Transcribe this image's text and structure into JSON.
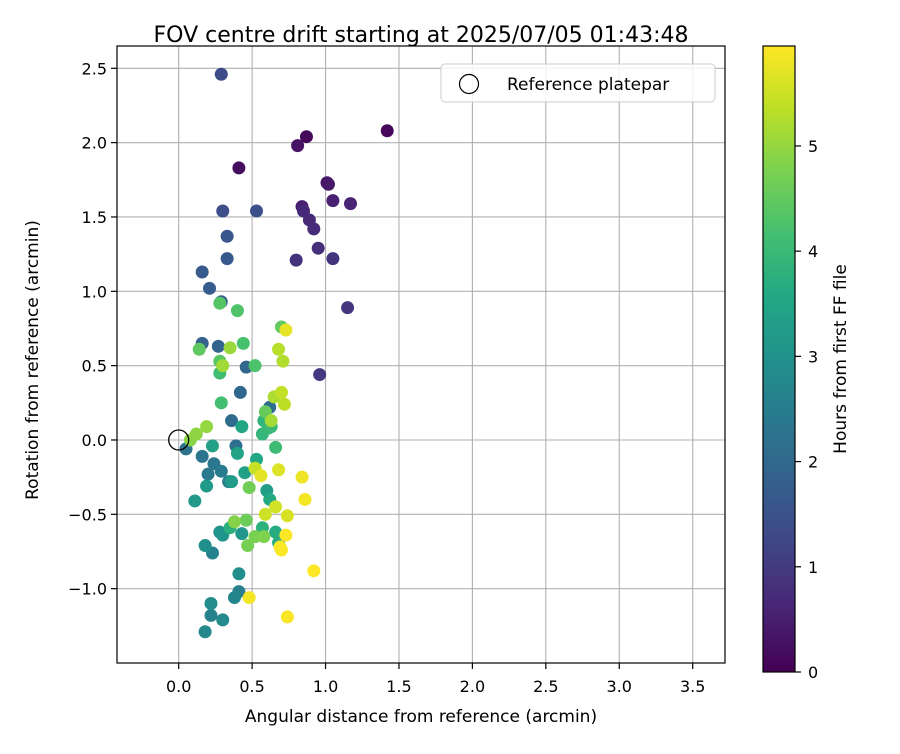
{
  "chart_data": {
    "type": "scatter",
    "title": "FOV centre drift starting at 2025/07/05 01:43:48",
    "xlabel": "Angular distance from reference (arcmin)",
    "ylabel": "Rotation from reference (arcmin)",
    "xlim": [
      -0.42,
      3.72
    ],
    "ylim": [
      -1.5,
      2.65
    ],
    "xticks": [
      0.0,
      0.5,
      1.0,
      1.5,
      2.0,
      2.5,
      3.0,
      3.5
    ],
    "xtick_labels": [
      "0.0",
      "0.5",
      "1.0",
      "1.5",
      "2.0",
      "2.5",
      "3.0",
      "3.5"
    ],
    "yticks": [
      -1.0,
      -0.5,
      0.0,
      0.5,
      1.0,
      1.5,
      2.0,
      2.5
    ],
    "ytick_labels": [
      "−1.0",
      "−0.5",
      "0.0",
      "0.5",
      "1.0",
      "1.5",
      "2.0",
      "2.5"
    ],
    "grid": true,
    "legend": {
      "position": "top-right",
      "label": "Reference platepar",
      "marker": "open-circle"
    },
    "reference_point": {
      "x": 0.0,
      "y": 0.0
    },
    "colorbar": {
      "label": "Hours from first FF file",
      "colormap": "viridis",
      "range": [
        0,
        5.95
      ],
      "ticks": [
        0,
        1,
        2,
        3,
        4,
        5
      ],
      "tick_labels": [
        "0",
        "1",
        "2",
        "3",
        "4",
        "5"
      ]
    },
    "series": [
      {
        "color_by": "hours",
        "points": [
          [
            1.42,
            2.08,
            0.1
          ],
          [
            0.87,
            2.04,
            0.15
          ],
          [
            0.41,
            1.83,
            0.2
          ],
          [
            0.81,
            1.98,
            0.3
          ],
          [
            1.01,
            1.73,
            0.35
          ],
          [
            1.02,
            1.72,
            0.4
          ],
          [
            0.84,
            1.57,
            0.5
          ],
          [
            1.05,
            1.61,
            0.55
          ],
          [
            1.17,
            1.59,
            0.6
          ],
          [
            0.85,
            1.54,
            0.65
          ],
          [
            0.89,
            1.48,
            0.7
          ],
          [
            0.92,
            1.42,
            0.75
          ],
          [
            0.95,
            1.29,
            0.8
          ],
          [
            0.8,
            1.21,
            0.85
          ],
          [
            1.05,
            1.22,
            0.9
          ],
          [
            1.15,
            0.89,
            0.95
          ],
          [
            0.96,
            0.44,
            1.0
          ],
          [
            0.29,
            2.46,
            1.35
          ],
          [
            0.3,
            1.54,
            1.4
          ],
          [
            0.53,
            1.54,
            1.45
          ],
          [
            0.33,
            1.37,
            1.6
          ],
          [
            0.33,
            1.22,
            1.65
          ],
          [
            0.16,
            1.13,
            1.7
          ],
          [
            0.21,
            1.02,
            1.75
          ],
          [
            0.29,
            0.93,
            1.8
          ],
          [
            0.16,
            0.65,
            1.85
          ],
          [
            0.27,
            0.63,
            1.9
          ],
          [
            0.46,
            0.49,
            1.95
          ],
          [
            0.42,
            0.32,
            2.0
          ],
          [
            0.36,
            0.13,
            2.1
          ],
          [
            0.62,
            0.22,
            2.15
          ],
          [
            0.39,
            -0.04,
            2.2
          ],
          [
            0.05,
            -0.06,
            2.25
          ],
          [
            0.16,
            -0.11,
            2.3
          ],
          [
            0.24,
            -0.16,
            2.35
          ],
          [
            0.2,
            -0.23,
            2.4
          ],
          [
            0.29,
            -0.21,
            2.45
          ],
          [
            0.34,
            -0.28,
            2.5
          ],
          [
            0.41,
            -1.02,
            2.55
          ],
          [
            0.22,
            -1.18,
            2.6
          ],
          [
            0.23,
            -0.76,
            2.65
          ],
          [
            0.38,
            -1.06,
            2.7
          ],
          [
            0.18,
            -1.29,
            2.75
          ],
          [
            0.3,
            -1.21,
            2.8
          ],
          [
            0.22,
            -1.1,
            2.85
          ],
          [
            0.41,
            -0.9,
            2.9
          ],
          [
            0.18,
            -0.71,
            2.95
          ],
          [
            0.28,
            -0.62,
            3.0
          ],
          [
            0.3,
            -0.64,
            3.05
          ],
          [
            0.43,
            -0.63,
            3.1
          ],
          [
            0.11,
            -0.41,
            3.15
          ],
          [
            0.19,
            -0.31,
            3.2
          ],
          [
            0.36,
            -0.28,
            3.25
          ],
          [
            0.6,
            -0.34,
            3.3
          ],
          [
            0.45,
            -0.22,
            3.35
          ],
          [
            0.23,
            -0.04,
            3.4
          ],
          [
            0.4,
            -0.09,
            3.45
          ],
          [
            0.43,
            0.09,
            3.5
          ],
          [
            0.53,
            -0.13,
            3.55
          ],
          [
            0.62,
            -0.4,
            3.6
          ],
          [
            0.66,
            -0.62,
            3.65
          ],
          [
            0.68,
            -0.69,
            3.7
          ],
          [
            0.35,
            -0.59,
            3.75
          ],
          [
            0.57,
            -0.59,
            3.8
          ],
          [
            0.58,
            0.13,
            3.85
          ],
          [
            0.57,
            0.04,
            3.9
          ],
          [
            0.61,
            0.08,
            3.95
          ],
          [
            0.63,
            0.09,
            4.0
          ],
          [
            0.66,
            -0.05,
            4.05
          ],
          [
            0.28,
            0.45,
            4.1
          ],
          [
            0.29,
            0.25,
            4.15
          ],
          [
            0.44,
            0.65,
            4.2
          ],
          [
            0.52,
            0.5,
            4.25
          ],
          [
            0.4,
            0.87,
            4.3
          ],
          [
            0.28,
            0.92,
            4.35
          ],
          [
            0.28,
            0.53,
            4.4
          ],
          [
            0.14,
            0.61,
            4.45
          ],
          [
            0.7,
            0.76,
            4.5
          ],
          [
            0.59,
            0.19,
            4.55
          ],
          [
            0.46,
            -0.54,
            4.6
          ],
          [
            0.48,
            -0.32,
            4.65
          ],
          [
            0.47,
            -0.71,
            4.7
          ],
          [
            0.52,
            -0.65,
            4.75
          ],
          [
            0.58,
            -0.65,
            4.8
          ],
          [
            0.38,
            -0.55,
            4.85
          ],
          [
            0.08,
            0.0,
            4.9
          ],
          [
            0.12,
            0.04,
            4.95
          ],
          [
            0.19,
            0.09,
            5.0
          ],
          [
            0.35,
            0.62,
            5.05
          ],
          [
            0.3,
            0.5,
            5.1
          ],
          [
            0.63,
            0.13,
            5.15
          ],
          [
            0.65,
            0.29,
            5.2
          ],
          [
            0.71,
            0.53,
            5.25
          ],
          [
            0.68,
            0.61,
            5.3
          ],
          [
            0.72,
            0.24,
            5.35
          ],
          [
            0.7,
            0.32,
            5.4
          ],
          [
            0.52,
            -0.19,
            5.45
          ],
          [
            0.59,
            -0.5,
            5.5
          ],
          [
            0.66,
            -0.45,
            5.55
          ],
          [
            0.74,
            -0.51,
            5.6
          ],
          [
            0.68,
            -0.2,
            5.65
          ],
          [
            0.56,
            -0.24,
            5.7
          ],
          [
            0.73,
            0.74,
            5.75
          ],
          [
            0.84,
            -0.25,
            5.8
          ],
          [
            0.86,
            -0.4,
            5.85
          ],
          [
            0.48,
            -1.06,
            5.88
          ],
          [
            0.74,
            -1.19,
            5.9
          ],
          [
            0.7,
            -0.74,
            5.92
          ],
          [
            0.69,
            -0.72,
            5.93
          ],
          [
            0.73,
            -0.64,
            5.94
          ],
          [
            0.92,
            -0.88,
            5.95
          ]
        ]
      }
    ]
  }
}
